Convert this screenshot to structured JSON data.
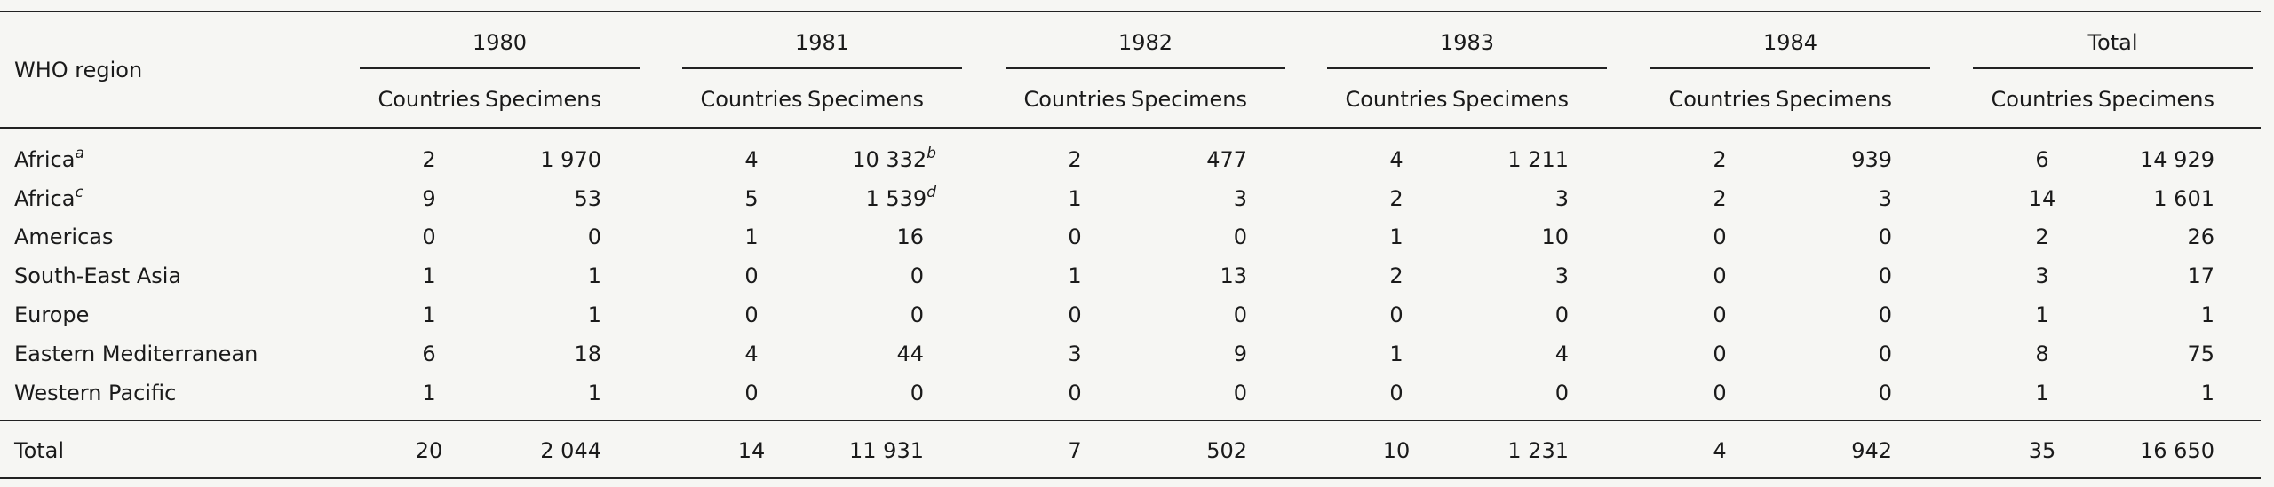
{
  "table": {
    "header": {
      "region": "WHO region",
      "groups": [
        "1980",
        "1981",
        "1982",
        "1983",
        "1984",
        "Total"
      ],
      "sub": [
        "Countries",
        "Specimens"
      ]
    },
    "rows": [
      {
        "region": "Africa",
        "note": "a",
        "cells": [
          "2",
          "1 970",
          "4",
          {
            "text": "10 332",
            "note": "b"
          },
          "2",
          "477",
          "4",
          "1 211",
          "2",
          "939",
          "6",
          "14 929"
        ]
      },
      {
        "region": "Africa",
        "note": "c",
        "cells": [
          "9",
          "53",
          "5",
          {
            "text": "1 539",
            "note": "d"
          },
          "1",
          "3",
          "2",
          "3",
          "2",
          "3",
          "14",
          "1 601"
        ]
      },
      {
        "region": "Americas",
        "cells": [
          "0",
          "0",
          "1",
          "16",
          "0",
          "0",
          "1",
          "10",
          "0",
          "0",
          "2",
          "26"
        ]
      },
      {
        "region": "South-East Asia",
        "cells": [
          "1",
          "1",
          "0",
          "0",
          "1",
          "13",
          "2",
          "3",
          "0",
          "0",
          "3",
          "17"
        ]
      },
      {
        "region": "Europe",
        "cells": [
          "1",
          "1",
          "0",
          "0",
          "0",
          "0",
          "0",
          "0",
          "0",
          "0",
          "1",
          "1"
        ]
      },
      {
        "region": "Eastern Mediterranean",
        "cells": [
          "6",
          "18",
          "4",
          "44",
          "3",
          "9",
          "1",
          "4",
          "0",
          "0",
          "8",
          "75"
        ]
      },
      {
        "region": "Western Pacific",
        "cells": [
          "1",
          "1",
          "0",
          "0",
          "0",
          "0",
          "0",
          "0",
          "0",
          "0",
          "1",
          "1"
        ]
      }
    ],
    "total": {
      "region": "Total",
      "cells": [
        "20",
        "2 044",
        "14",
        "11 931",
        "7",
        "502",
        "10",
        "1 231",
        "4",
        "942",
        "35",
        "16 650"
      ]
    }
  }
}
